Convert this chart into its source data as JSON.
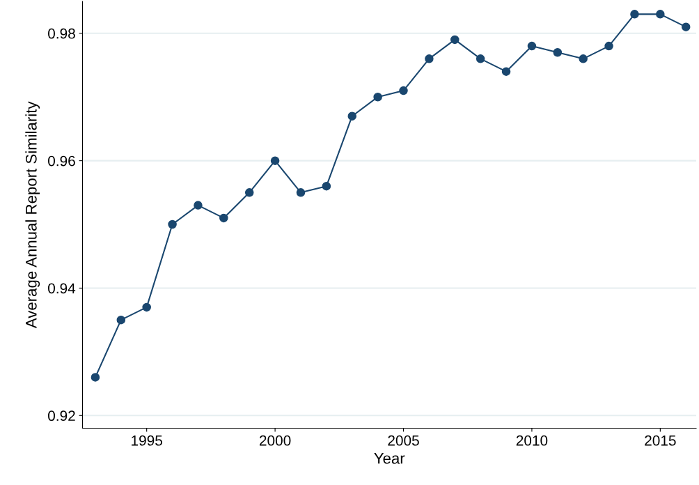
{
  "chart_data": {
    "type": "line",
    "xlabel": "Year",
    "ylabel": "Average Annual Report Similarity",
    "x": [
      1993,
      1994,
      1995,
      1996,
      1997,
      1998,
      1999,
      2000,
      2001,
      2002,
      2003,
      2004,
      2005,
      2006,
      2007,
      2008,
      2009,
      2010,
      2011,
      2012,
      2013,
      2014,
      2015,
      2016
    ],
    "series": [
      {
        "color": "#1a476f",
        "values": [
          0.926,
          0.935,
          0.937,
          0.95,
          0.953,
          0.951,
          0.955,
          0.96,
          0.955,
          0.956,
          0.967,
          0.97,
          0.971,
          0.976,
          0.979,
          0.976,
          0.974,
          0.978,
          0.977,
          0.976,
          0.978,
          0.983,
          0.983,
          0.981
        ]
      }
    ],
    "xlim": [
      1992.5,
      2016.4
    ],
    "xticks": [
      1995,
      2000,
      2005,
      2010,
      2015
    ],
    "ylim": [
      0.918,
      0.985
    ],
    "yticks": [
      0.92,
      0.94,
      0.96,
      0.98
    ],
    "grid": "y",
    "marker": "circle",
    "line_style": "solid",
    "legend": false
  }
}
